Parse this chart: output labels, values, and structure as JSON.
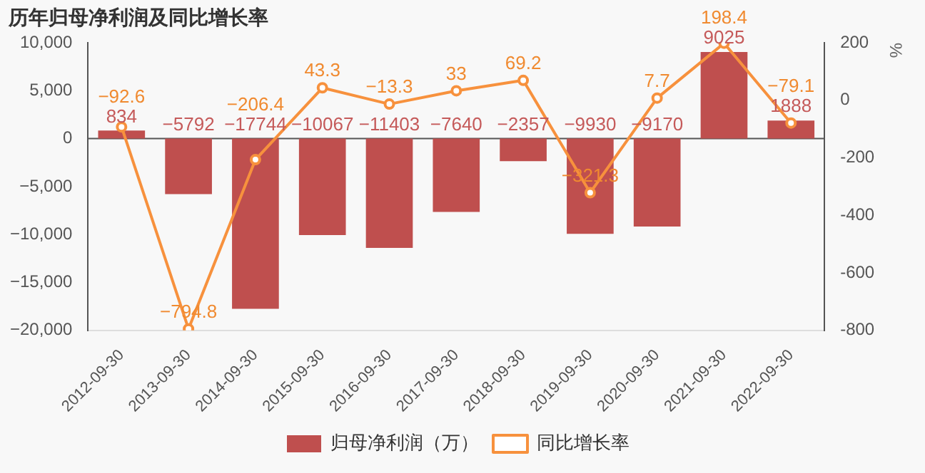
{
  "chart_data": {
    "type": "bar",
    "title": "历年归母净利润及同比增长率",
    "y2label": "%",
    "categories": [
      "2012-09-30",
      "2013-09-30",
      "2014-09-30",
      "2015-09-30",
      "2016-09-30",
      "2017-09-30",
      "2018-09-30",
      "2019-09-30",
      "2020-09-30",
      "2021-09-30",
      "2022-09-30"
    ],
    "series": [
      {
        "name": "归母净利润（万）",
        "color": "#bf4f4e",
        "values": [
          834,
          -5792,
          -17744,
          -10067,
          -11403,
          -7640,
          -2357,
          -9930,
          -9170,
          9025,
          1888
        ]
      },
      {
        "name": "同比增长率",
        "type": "line",
        "axis": "y2",
        "color": "#f7913d",
        "marker": "circle",
        "values": [
          -92.6,
          -794.8,
          -206.4,
          43.3,
          -13.3,
          33,
          69.2,
          -321.3,
          7.7,
          198.4,
          -79.1
        ]
      }
    ],
    "ylim": [
      -20000,
      10000
    ],
    "yticks": [
      {
        "value": -20000,
        "label": "−20,000"
      },
      {
        "value": -15000,
        "label": "−15,000"
      },
      {
        "value": -10000,
        "label": "−10,000"
      },
      {
        "value": -5000,
        "label": "−5,000"
      },
      0,
      {
        "value": 5000,
        "label": "5,000"
      },
      {
        "value": 10000,
        "label": "10,000"
      }
    ],
    "y2lim": [
      -800,
      200
    ],
    "y2ticks": [
      -800,
      -600,
      -400,
      -200,
      0,
      200
    ],
    "data_labels": true,
    "legend": "bottom"
  }
}
